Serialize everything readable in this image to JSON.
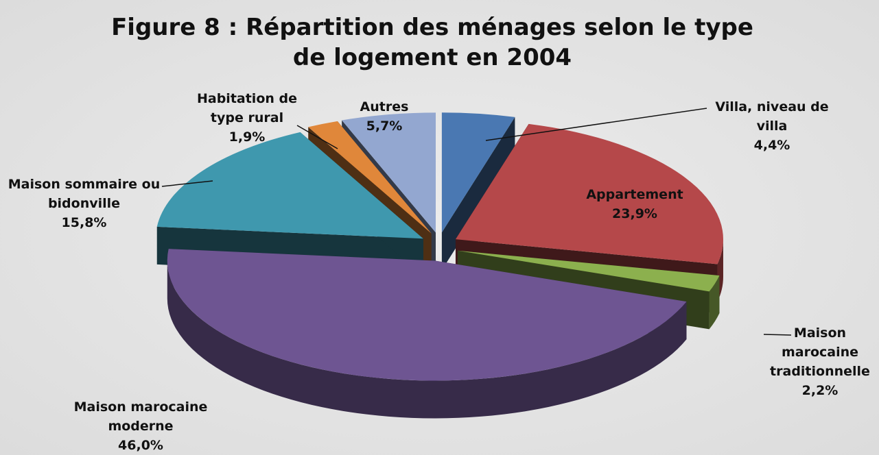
{
  "chart_data": {
    "type": "pie",
    "title": "Figure 8 : Répartition des ménages selon le type de logement en 2004",
    "categories": [
      "Villa, niveau de villa",
      "Appartement",
      "Maison marocaine traditionnelle",
      "Maison marocaine moderne",
      "Maison sommaire ou bidonville",
      "Habitation de type rural",
      "Autres"
    ],
    "values": [
      4.4,
      23.9,
      2.2,
      46.0,
      15.8,
      1.9,
      5.7
    ],
    "value_labels": [
      "4,4%",
      "23,9%",
      "2,2%",
      "46,0%",
      "15,8%",
      "1,9%",
      "5,7%"
    ],
    "colors": [
      "#4a78b2",
      "#b5484a",
      "#8cb04e",
      "#6e5592",
      "#3f98ae",
      "#e0873a",
      "#93a7d0"
    ]
  }
}
